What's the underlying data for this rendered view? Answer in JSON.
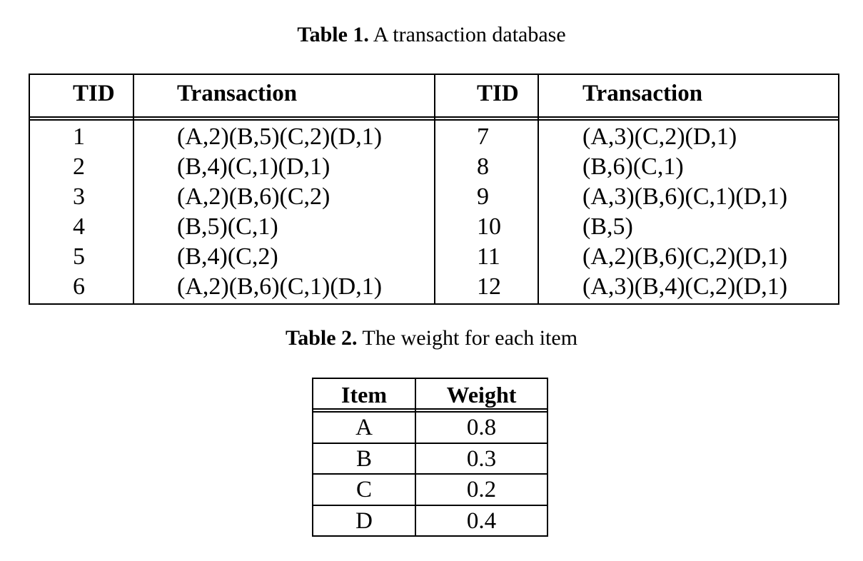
{
  "table1": {
    "caption_label": "Table 1.",
    "caption_text": " A transaction database",
    "headers": [
      "TID",
      "Transaction",
      "TID",
      "Transaction"
    ],
    "rows": [
      {
        "tid_left": "1",
        "tx_left": "(A,2)(B,5)(C,2)(D,1)",
        "tid_right": "7",
        "tx_right": "(A,3)(C,2)(D,1)"
      },
      {
        "tid_left": "2",
        "tx_left": "(B,4)(C,1)(D,1)",
        "tid_right": "8",
        "tx_right": "(B,6)(C,1)"
      },
      {
        "tid_left": "3",
        "tx_left": "(A,2)(B,6)(C,2)",
        "tid_right": "9",
        "tx_right": "(A,3)(B,6)(C,1)(D,1)"
      },
      {
        "tid_left": "4",
        "tx_left": "(B,5)(C,1)",
        "tid_right": "10",
        "tx_right": "(B,5)"
      },
      {
        "tid_left": "5",
        "tx_left": "(B,4)(C,2)",
        "tid_right": "11",
        "tx_right": "(A,2)(B,6)(C,2)(D,1)"
      },
      {
        "tid_left": "6",
        "tx_left": "(A,2)(B,6)(C,1)(D,1)",
        "tid_right": "12",
        "tx_right": "(A,3)(B,4)(C,2)(D,1)"
      }
    ]
  },
  "table2": {
    "caption_label": "Table 2.",
    "caption_text": " The weight for each item",
    "headers": [
      "Item",
      "Weight"
    ],
    "rows": [
      {
        "item": "A",
        "weight": "0.8"
      },
      {
        "item": "B",
        "weight": "0.3"
      },
      {
        "item": "C",
        "weight": "0.2"
      },
      {
        "item": "D",
        "weight": "0.4"
      }
    ]
  }
}
